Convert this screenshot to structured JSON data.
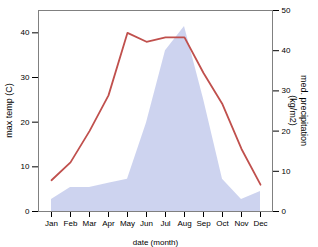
{
  "chart_data": {
    "type": "line",
    "xlabel": "date (month)",
    "ylabel": "max temp (C)",
    "y2label": "med. precipitation\n(kg/m2)",
    "categories": [
      "Jan",
      "Feb",
      "Mar",
      "Apr",
      "May",
      "Jun",
      "Jul",
      "Aug",
      "Sep",
      "Oct",
      "Nov",
      "Dec"
    ],
    "series": [
      {
        "type": "area",
        "axis": "y2",
        "color": "#b8c0e8",
        "values": [
          3,
          6,
          6,
          7,
          8,
          22,
          40,
          46,
          28,
          8,
          3,
          5
        ]
      },
      {
        "type": "line",
        "color": "#c0504d",
        "values": [
          7,
          11,
          18,
          26,
          40,
          38,
          39,
          39,
          31,
          24,
          14,
          6
        ]
      }
    ],
    "ylim": [
      0,
      45
    ],
    "yticks": [
      0,
      10,
      20,
      30,
      40
    ],
    "y2lim": [
      0,
      50
    ],
    "y2ticks": [
      0,
      10,
      20,
      30,
      40,
      50
    ],
    "grid": false
  }
}
